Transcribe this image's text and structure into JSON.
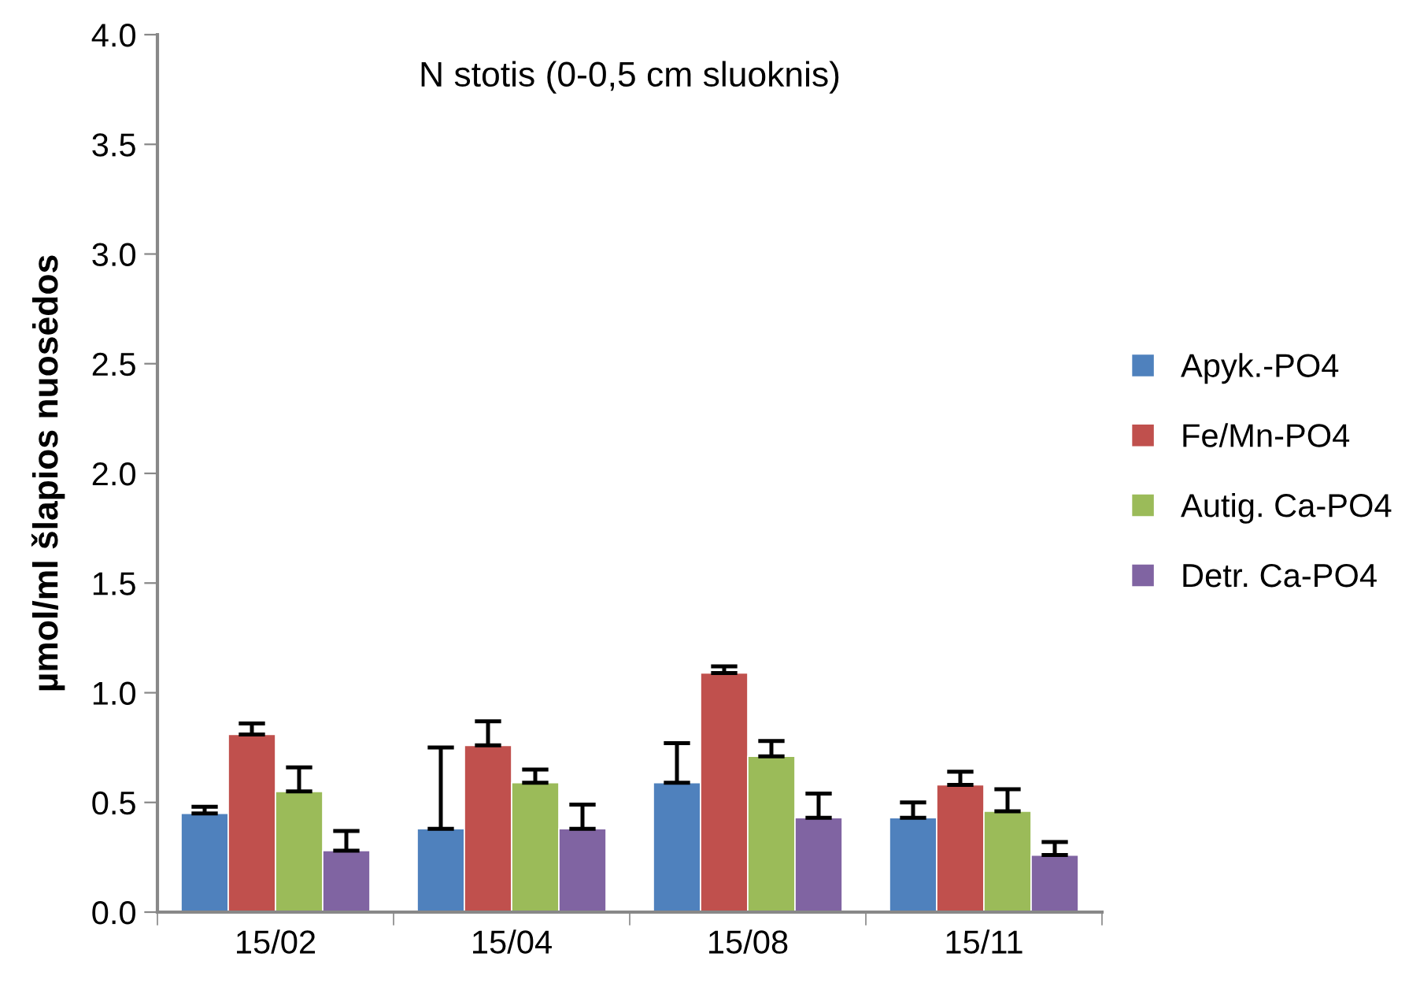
{
  "chart_data": {
    "type": "bar",
    "title": "N stotis (0-0,5 cm sluoknis)",
    "ylabel": "µmol/ml šlapios nuosėdos",
    "categories": [
      "15/02",
      "15/04",
      "15/08",
      "15/11"
    ],
    "series": [
      {
        "name": "Apyk.-PO4",
        "color": "#4f81bd",
        "values": [
          0.45,
          0.38,
          0.59,
          0.43
        ],
        "errors": [
          [
            0.45,
            0.48
          ],
          [
            0.38,
            0.75
          ],
          [
            0.59,
            0.77
          ],
          [
            0.43,
            0.5
          ]
        ]
      },
      {
        "name": "Fe/Mn-PO4",
        "color": "#c0504d",
        "values": [
          0.81,
          0.76,
          1.09,
          0.58
        ],
        "errors": [
          [
            0.81,
            0.86
          ],
          [
            0.76,
            0.87
          ],
          [
            1.09,
            1.12
          ],
          [
            0.58,
            0.64
          ]
        ]
      },
      {
        "name": "Autig. Ca-PO4",
        "color": "#9bbb59",
        "values": [
          0.55,
          0.59,
          0.71,
          0.46
        ],
        "errors": [
          [
            0.55,
            0.66
          ],
          [
            0.59,
            0.65
          ],
          [
            0.71,
            0.78
          ],
          [
            0.46,
            0.56
          ]
        ]
      },
      {
        "name": "Detr. Ca-PO4",
        "color": "#8064a2",
        "values": [
          0.28,
          0.38,
          0.43,
          0.26
        ],
        "errors": [
          [
            0.28,
            0.37
          ],
          [
            0.38,
            0.49
          ],
          [
            0.43,
            0.54
          ],
          [
            0.26,
            0.32
          ]
        ]
      }
    ],
    "ylim": [
      0,
      4.0
    ],
    "yticks": [
      {
        "value": 0,
        "label": "0.0"
      },
      {
        "value": 0.5,
        "label": "0.5"
      },
      {
        "value": 1.0,
        "label": "1.0"
      },
      {
        "value": 1.5,
        "label": "1.5"
      },
      {
        "value": 2.0,
        "label": "2.0"
      },
      {
        "value": 2.5,
        "label": "2.5"
      },
      {
        "value": 3.0,
        "label": "3.0"
      },
      {
        "value": 3.5,
        "label": "3.5"
      },
      {
        "value": 4.0,
        "label": "4.0"
      }
    ],
    "grid": false,
    "legend": "right"
  }
}
